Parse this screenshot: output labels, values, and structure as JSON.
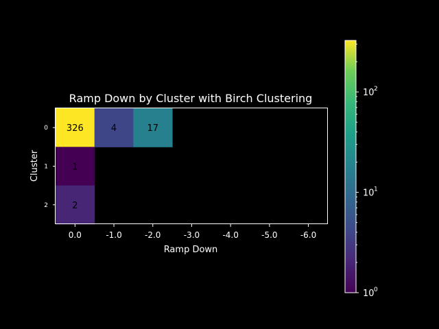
{
  "chart_data": {
    "type": "heatmap",
    "title": "Ramp Down by Cluster with Birch Clustering",
    "xlabel": "Ramp Down",
    "ylabel": "Cluster",
    "x_categories": [
      "0.0",
      "-1.0",
      "-2.0",
      "-3.0",
      "-4.0",
      "-5.0",
      "-6.0"
    ],
    "y_categories": [
      "0",
      "1",
      "2"
    ],
    "values": [
      [
        326,
        4,
        17,
        null,
        null,
        null,
        null
      ],
      [
        1,
        null,
        null,
        null,
        null,
        null,
        null
      ],
      [
        2,
        null,
        null,
        null,
        null,
        null,
        null
      ]
    ],
    "cell_labels": [
      [
        "326",
        "4",
        "17",
        "",
        "",
        "",
        ""
      ],
      [
        "1",
        "",
        "",
        "",
        "",
        "",
        ""
      ],
      [
        "2",
        "",
        "",
        "",
        "",
        "",
        ""
      ]
    ],
    "colorbar": {
      "scale": "log",
      "colormap": "viridis",
      "range": [
        1,
        326
      ],
      "ticks": [
        {
          "value": 1,
          "base": "10",
          "exp": "0"
        },
        {
          "value": 10,
          "base": "10",
          "exp": "1"
        },
        {
          "value": 100,
          "base": "10",
          "exp": "2"
        }
      ]
    },
    "colors": {
      "background": "#000000",
      "axes": "#ffffff",
      "missing": "#000000"
    }
  }
}
